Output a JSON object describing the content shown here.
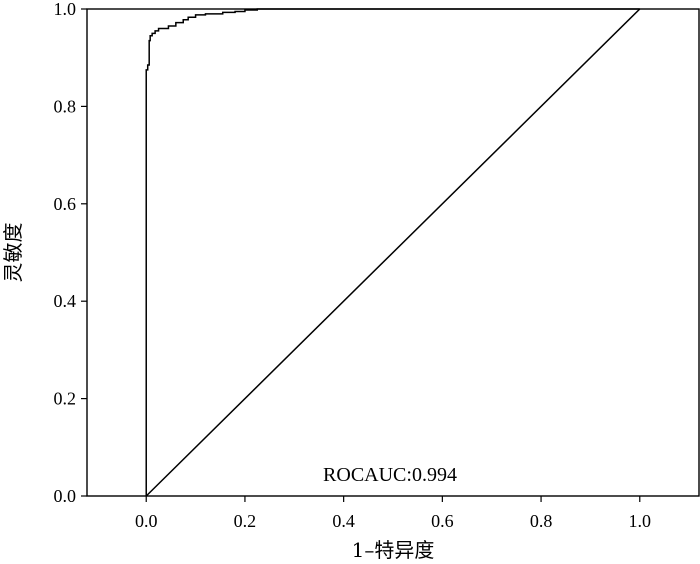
{
  "chart_data": {
    "type": "line",
    "title": "",
    "xlabel": "1–特异度",
    "ylabel": "灵敏度",
    "xlim": [
      -0.12,
      1.12
    ],
    "ylim": [
      0.0,
      1.0
    ],
    "grid": false,
    "x_ticks": [
      0.0,
      0.2,
      0.4,
      0.6,
      0.8,
      1.0
    ],
    "x_tick_labels": [
      "0.0",
      "0.2",
      "0.4",
      "0.6",
      "0.8",
      "1.0"
    ],
    "y_ticks": [
      0.0,
      0.2,
      0.4,
      0.6,
      0.8,
      1.0
    ],
    "y_tick_labels": [
      "0.0",
      "0.2",
      "0.4",
      "0.6",
      "0.8",
      "1.0"
    ],
    "annotation": "ROCAUC:0.994",
    "line_color": "#000000",
    "series": [
      {
        "x": [
          0.0,
          0.0,
          0.003,
          0.003,
          0.006,
          0.006,
          0.008,
          0.008,
          0.012,
          0.012,
          0.018,
          0.018,
          0.025,
          0.025,
          0.045,
          0.045,
          0.06,
          0.06,
          0.075,
          0.075,
          0.085,
          0.085,
          0.1,
          0.1,
          0.12,
          0.12,
          0.155,
          0.155,
          0.18,
          0.18,
          0.2,
          0.2,
          0.225,
          0.225,
          1.0
        ],
        "y": [
          0.0,
          0.875,
          0.875,
          0.885,
          0.885,
          0.935,
          0.935,
          0.945,
          0.945,
          0.95,
          0.95,
          0.955,
          0.955,
          0.96,
          0.96,
          0.965,
          0.965,
          0.972,
          0.972,
          0.978,
          0.978,
          0.983,
          0.983,
          0.988,
          0.988,
          0.99,
          0.99,
          0.993,
          0.993,
          0.995,
          0.995,
          0.998,
          0.998,
          1.0,
          1.0
        ]
      },
      {
        "x": [
          0.0,
          1.0
        ],
        "y": [
          0.0,
          1.0
        ]
      }
    ]
  }
}
